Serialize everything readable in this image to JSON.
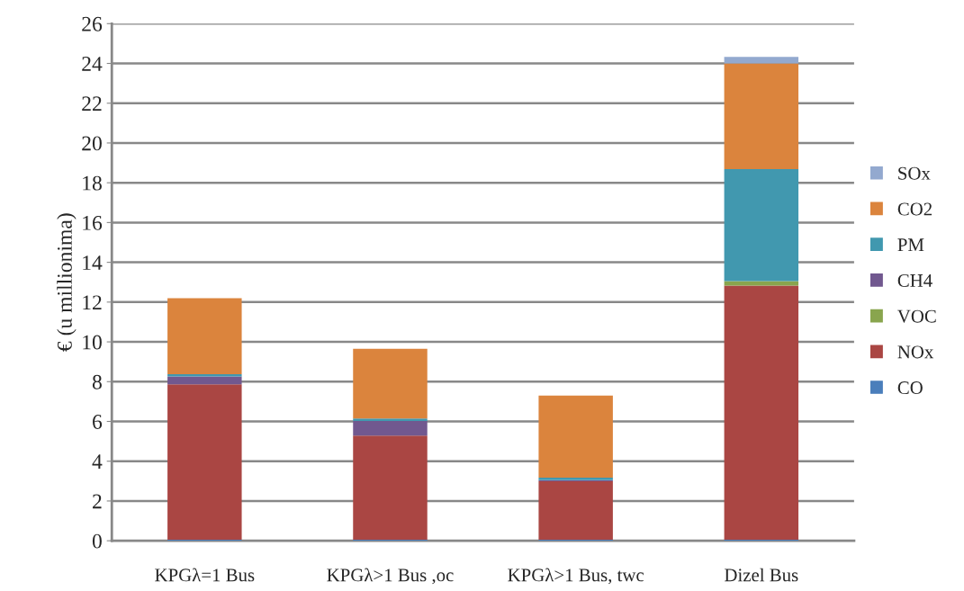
{
  "chart_data": {
    "type": "bar",
    "stacked": true,
    "ylabel": "€ (u millionima)",
    "categories": [
      "KPGλ=1 Bus",
      "KPGλ>1 Bus ,oc",
      "KPGλ>1 Bus, twc",
      "Dizel Bus"
    ],
    "series": [
      {
        "name": "CO",
        "color": "#4a7ebb",
        "values": [
          0.05,
          0.05,
          0.05,
          0.05
        ]
      },
      {
        "name": "NOx",
        "color": "#aa4643",
        "values": [
          7.82,
          5.24,
          2.94,
          12.78
        ]
      },
      {
        "name": "VOC",
        "color": "#89a54e",
        "values": [
          0,
          0,
          0,
          0.22
        ]
      },
      {
        "name": "CH4",
        "color": "#71588f",
        "values": [
          0.39,
          0.73,
          0.06,
          0
        ]
      },
      {
        "name": "PM",
        "color": "#4198af",
        "values": [
          0.11,
          0.13,
          0.12,
          5.64
        ]
      },
      {
        "name": "CO2",
        "color": "#db843d",
        "values": [
          3.83,
          3.5,
          4.13,
          5.31
        ]
      },
      {
        "name": "SOx",
        "color": "#93a9cf",
        "values": [
          0,
          0,
          0,
          0.33
        ]
      }
    ],
    "ylim": [
      0,
      26
    ],
    "yticks": [
      0,
      2,
      4,
      6,
      8,
      10,
      12,
      14,
      16,
      18,
      20,
      22,
      24,
      26
    ],
    "grid": "y",
    "legend": "right"
  }
}
